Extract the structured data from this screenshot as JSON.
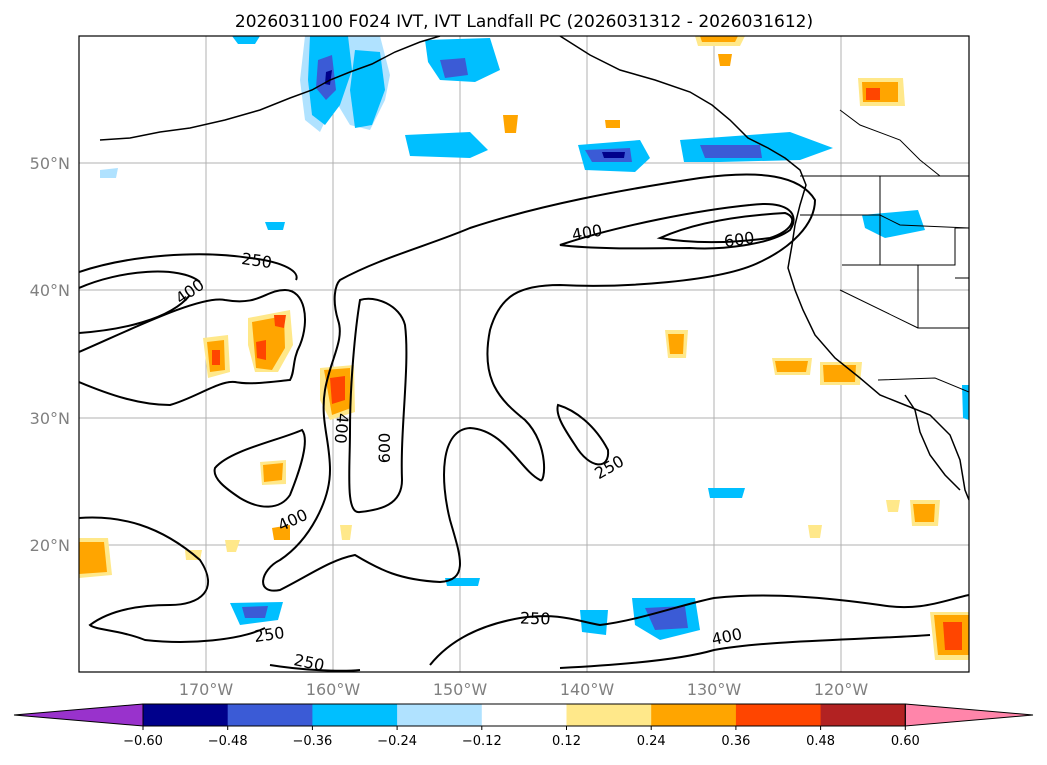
{
  "title": "2026031100 F024 IVT, IVT Landfall PC (2026031312 - 2026031612)",
  "map": {
    "lat_labels": [
      "50°N",
      "40°N",
      "30°N",
      "20°N"
    ],
    "lon_labels": [
      "170°W",
      "160°W",
      "150°W",
      "140°W",
      "130°W",
      "120°W"
    ],
    "ivt_contour_labels": [
      "250",
      "400",
      "250",
      "400",
      "600",
      "400",
      "600",
      "250",
      "400",
      "250",
      "250",
      "400"
    ]
  },
  "colorbar": {
    "ticks": [
      "−0.60",
      "−0.48",
      "−0.36",
      "−0.24",
      "−0.12",
      "0.12",
      "0.24",
      "0.36",
      "0.48",
      "0.60"
    ],
    "colors": [
      "#9932cc",
      "#00008b",
      "#3b5bd6",
      "#00bfff",
      "#b0e2ff",
      "#ffffff",
      "#ffe88a",
      "#ffa500",
      "#ff4500",
      "#b22222",
      "#ff85aa"
    ]
  }
}
